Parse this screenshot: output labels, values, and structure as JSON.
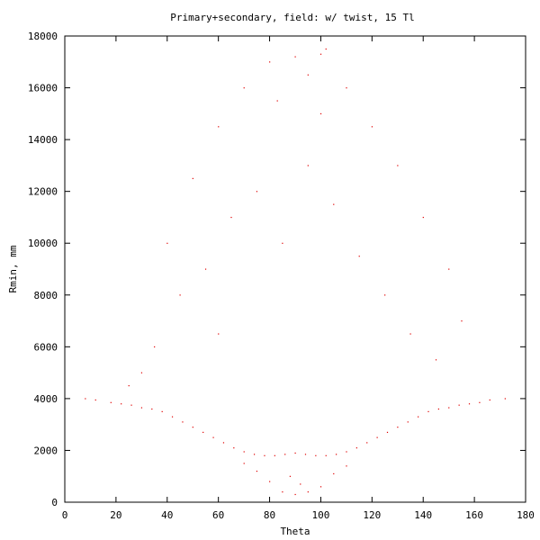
{
  "chart_data": {
    "type": "scatter",
    "title": "Primary+secondary, field: w/ twist, 15 Tl",
    "xlabel": "Theta",
    "ylabel": "Rmin, mm",
    "xlim": [
      0,
      180
    ],
    "ylim": [
      0,
      18000
    ],
    "xticks": [
      0,
      20,
      40,
      60,
      80,
      100,
      120,
      140,
      160,
      180
    ],
    "yticks": [
      0,
      2000,
      4000,
      6000,
      8000,
      10000,
      12000,
      14000,
      16000,
      18000
    ],
    "grid": false,
    "legend": "none",
    "series": [
      {
        "color": "#e00000",
        "marker": "dot",
        "points": [
          [
            8,
            4000
          ],
          [
            12,
            3950
          ],
          [
            18,
            3850
          ],
          [
            22,
            3800
          ],
          [
            26,
            3750
          ],
          [
            30,
            3650
          ],
          [
            34,
            3600
          ],
          [
            38,
            3500
          ],
          [
            42,
            3300
          ],
          [
            46,
            3100
          ],
          [
            50,
            2900
          ],
          [
            54,
            2700
          ],
          [
            58,
            2500
          ],
          [
            62,
            2300
          ],
          [
            66,
            2100
          ],
          [
            70,
            1950
          ],
          [
            74,
            1850
          ],
          [
            78,
            1800
          ],
          [
            82,
            1800
          ],
          [
            86,
            1850
          ],
          [
            90,
            1900
          ],
          [
            94,
            1850
          ],
          [
            98,
            1800
          ],
          [
            102,
            1800
          ],
          [
            106,
            1850
          ],
          [
            110,
            1950
          ],
          [
            114,
            2100
          ],
          [
            118,
            2300
          ],
          [
            122,
            2500
          ],
          [
            126,
            2700
          ],
          [
            130,
            2900
          ],
          [
            134,
            3100
          ],
          [
            138,
            3300
          ],
          [
            142,
            3500
          ],
          [
            146,
            3600
          ],
          [
            150,
            3650
          ],
          [
            154,
            3750
          ],
          [
            158,
            3800
          ],
          [
            162,
            3850
          ],
          [
            166,
            3950
          ],
          [
            172,
            4000
          ],
          [
            80,
            800
          ],
          [
            85,
            400
          ],
          [
            90,
            300
          ],
          [
            95,
            400
          ],
          [
            100,
            600
          ],
          [
            75,
            1200
          ],
          [
            105,
            1100
          ],
          [
            88,
            1000
          ],
          [
            92,
            700
          ],
          [
            70,
            1500
          ],
          [
            110,
            1400
          ],
          [
            40,
            10000
          ],
          [
            50,
            12500
          ],
          [
            60,
            14500
          ],
          [
            70,
            16000
          ],
          [
            80,
            17000
          ],
          [
            90,
            17200
          ],
          [
            100,
            17300
          ],
          [
            110,
            16000
          ],
          [
            120,
            14500
          ],
          [
            130,
            13000
          ],
          [
            140,
            11000
          ],
          [
            150,
            9000
          ],
          [
            155,
            7000
          ],
          [
            45,
            8000
          ],
          [
            55,
            9000
          ],
          [
            65,
            11000
          ],
          [
            75,
            12000
          ],
          [
            85,
            10000
          ],
          [
            95,
            13000
          ],
          [
            105,
            11500
          ],
          [
            115,
            9500
          ],
          [
            125,
            8000
          ],
          [
            135,
            6500
          ],
          [
            145,
            5500
          ],
          [
            35,
            6000
          ],
          [
            30,
            5000
          ],
          [
            25,
            4500
          ],
          [
            60,
            6500
          ],
          [
            100,
            15000
          ],
          [
            102,
            17500
          ],
          [
            95,
            16500
          ],
          [
            83,
            15500
          ]
        ]
      }
    ]
  }
}
